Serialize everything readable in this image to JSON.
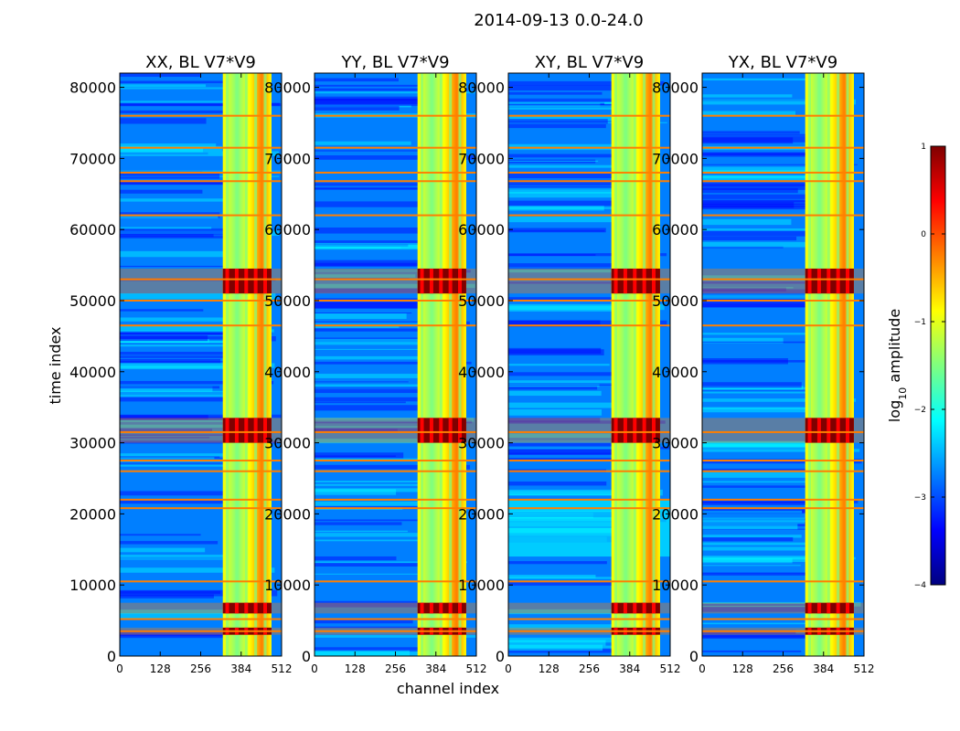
{
  "chart_data": {
    "type": "heatmap",
    "suptitle": "2014-09-13 0.0-24.0",
    "xlabel": "channel index",
    "ylabel": "time index",
    "xlim": [
      0,
      512
    ],
    "ylim": [
      0,
      82000
    ],
    "xticks": [
      0,
      128,
      256,
      384,
      512
    ],
    "yticks": [
      0,
      10000,
      20000,
      30000,
      40000,
      50000,
      60000,
      70000,
      80000
    ],
    "panels": [
      {
        "title": "XX, BL V7*V9",
        "pol": "XX"
      },
      {
        "title": "YY, BL V7*V9",
        "pol": "YY"
      },
      {
        "title": "XY, BL V7*V9",
        "pol": "XY"
      },
      {
        "title": "YX, BL V7*V9",
        "pol": "YX"
      }
    ],
    "colorbar": {
      "label_prefix": "log",
      "label_sub": "10",
      "label_suffix": " amplitude",
      "min": -4,
      "max": 1,
      "ticks": [
        1,
        0,
        -1,
        -2,
        -3,
        -4
      ],
      "tick_labels": [
        "1",
        "0",
        "−1",
        "−2",
        "−3",
        "−4"
      ]
    },
    "features": {
      "bright_channel_range": [
        326,
        480
      ],
      "bright_channel_stripes": [
        340,
        370,
        400,
        430,
        460
      ],
      "bright_time_bands": [
        [
          3000,
          4000
        ],
        [
          6000,
          7500
        ],
        [
          30000,
          33500
        ],
        [
          51000,
          54500
        ]
      ],
      "flagged_rows": [
        3500,
        5200,
        10500,
        20800,
        22000,
        26000,
        27500,
        31500,
        46500,
        50000,
        53000,
        62000,
        66800,
        68000,
        71500,
        76000
      ],
      "colormap": [
        "#00007f",
        "#0000ff",
        "#007fff",
        "#00ffff",
        "#7fff7f",
        "#ffff00",
        "#ff7f00",
        "#ff0000",
        "#7f0000"
      ]
    }
  }
}
